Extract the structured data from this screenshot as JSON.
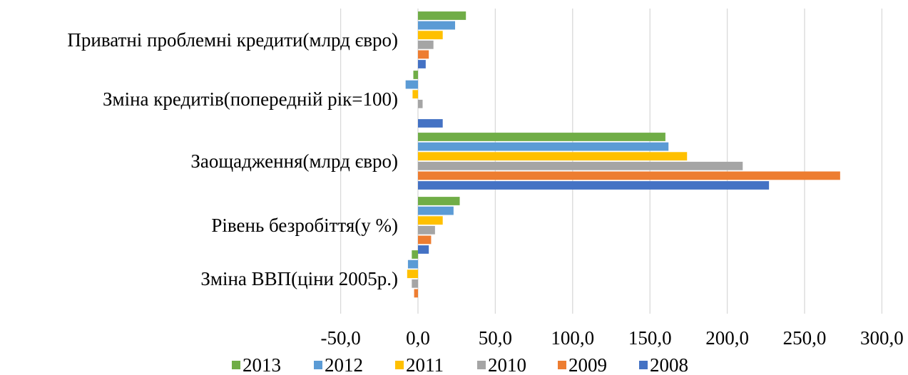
{
  "chart_data": {
    "type": "bar",
    "orientation": "horizontal",
    "title": "",
    "categories": [
      "Зміна ВВП(ціни 2005р.)",
      "Рівень безробіття(у %)",
      "Заощадження(млрд євро)",
      "Зміна кредитів(попередній рік=100)",
      "Приватні проблемні кредити(млрд євро)"
    ],
    "series": [
      {
        "name": "2008",
        "color": "#4472c4",
        "values": [
          0,
          7,
          227,
          16,
          5
        ]
      },
      {
        "name": "2009",
        "color": "#ed7d31",
        "values": [
          -2.5,
          8.5,
          273,
          0,
          7
        ]
      },
      {
        "name": "2010",
        "color": "#a5a5a5",
        "values": [
          -4,
          11,
          210,
          3,
          10
        ]
      },
      {
        "name": "2011",
        "color": "#ffc000",
        "values": [
          -7,
          16,
          174,
          -3.5,
          16
        ]
      },
      {
        "name": "2012",
        "color": "#5b9bd5",
        "values": [
          -6.5,
          23,
          162,
          -8,
          24
        ]
      },
      {
        "name": "2013",
        "color": "#70ad47",
        "values": [
          -4,
          27,
          160,
          -3,
          31
        ]
      }
    ],
    "xlim": [
      -50,
      300
    ],
    "xticks": [
      -50,
      0,
      50,
      100,
      150,
      200,
      250,
      300
    ],
    "xtick_labels": [
      "-50,0",
      "0,0",
      "50,0",
      "100,0",
      "150,0",
      "200,0",
      "250,0",
      "300,0"
    ],
    "grid": "vertical",
    "legend_position": "bottom",
    "legend_order": [
      "2013",
      "2012",
      "2011",
      "2010",
      "2009",
      "2008"
    ]
  }
}
